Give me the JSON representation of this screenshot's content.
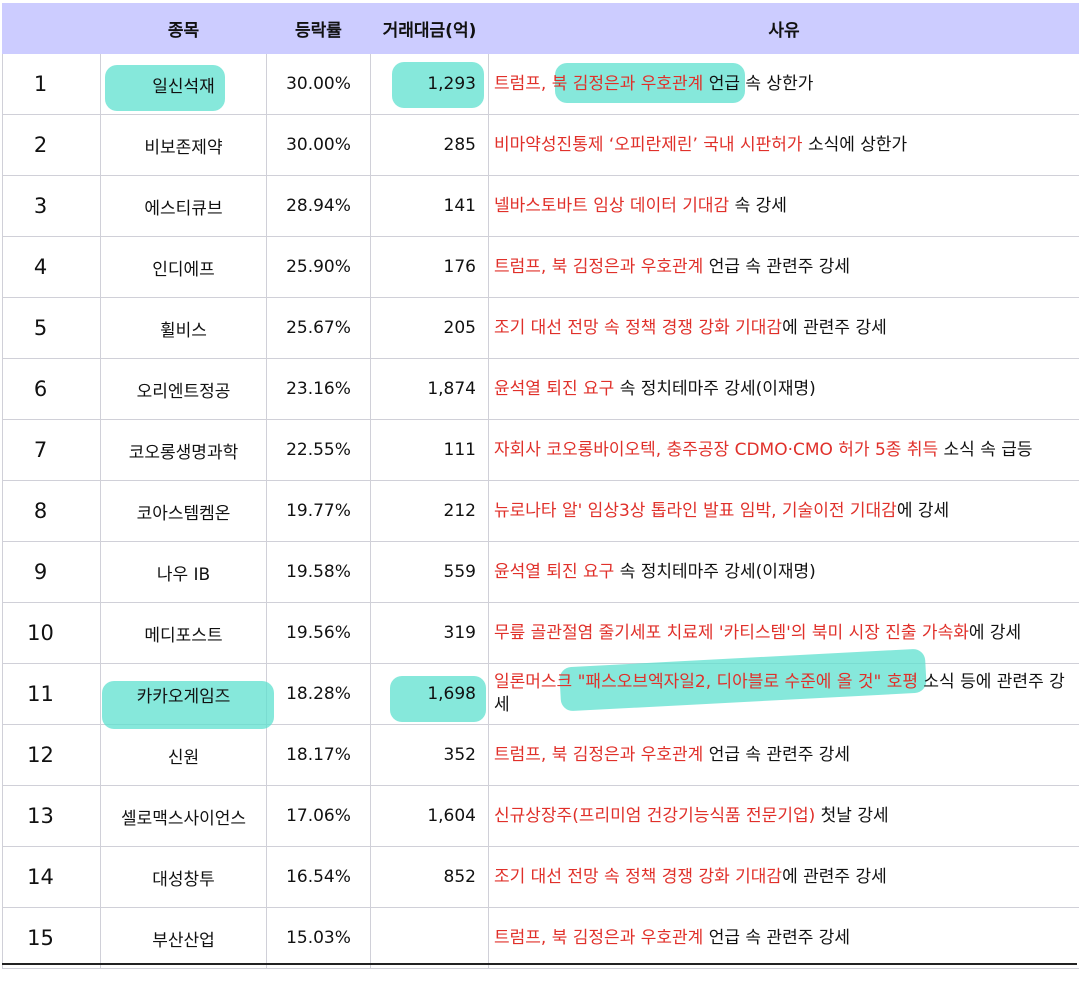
{
  "headers": {
    "rank": "",
    "name": "종목",
    "rate": "등락률",
    "volume": "거래대금(억)",
    "reason": "사유"
  },
  "colors": {
    "header_bg": "#ccccff",
    "highlight": "#5ee0cf",
    "reason_red": "#e0302a"
  },
  "rows": [
    {
      "rank": "1",
      "name": "일신석재",
      "rate": "30.00%",
      "volume": "1,293",
      "reason_red": "트럼프, 북 김정은과 우호관계",
      "reason_black": " 언급 속 상한가"
    },
    {
      "rank": "2",
      "name": "비보존제약",
      "rate": "30.00%",
      "volume": "285",
      "reason_red": "비마약성진통제 ‘오피란제린’ 국내 시판허가",
      "reason_black": " 소식에 상한가"
    },
    {
      "rank": "3",
      "name": "에스티큐브",
      "rate": "28.94%",
      "volume": "141",
      "reason_red": "넬바스토바트 임상 데이터 기대감",
      "reason_black": " 속 강세"
    },
    {
      "rank": "4",
      "name": "인디에프",
      "rate": "25.90%",
      "volume": "176",
      "reason_red": "트럼프, 북 김정은과 우호관계",
      "reason_black": " 언급 속 관련주 강세"
    },
    {
      "rank": "5",
      "name": "휠비스",
      "rate": "25.67%",
      "volume": "205",
      "reason_red": "조기 대선 전망 속 정책 경쟁 강화 기대감",
      "reason_black": "에 관련주 강세"
    },
    {
      "rank": "6",
      "name": "오리엔트정공",
      "rate": "23.16%",
      "volume": "1,874",
      "reason_red": "윤석열 퇴진 요구",
      "reason_black": " 속 정치테마주 강세(이재명)"
    },
    {
      "rank": "7",
      "name": "코오롱생명과학",
      "rate": "22.55%",
      "volume": "111",
      "reason_red": "자회사 코오롱바이오텍, 충주공장 CDMO·CMO 허가 5종 취득",
      "reason_black": " 소식 속 급등"
    },
    {
      "rank": "8",
      "name": "코아스템켐온",
      "rate": "19.77%",
      "volume": "212",
      "reason_red": "뉴로나타 알' 임상3상 톱라인 발표 임박, 기술이전 기대감",
      "reason_black": "에 강세"
    },
    {
      "rank": "9",
      "name": "나우 IB",
      "rate": "19.58%",
      "volume": "559",
      "reason_red": "윤석열 퇴진 요구",
      "reason_black": " 속 정치테마주 강세(이재명)"
    },
    {
      "rank": "10",
      "name": "메디포스트",
      "rate": "19.56%",
      "volume": "319",
      "reason_red": "무릎 골관절염 줄기세포 치료제 '카티스템'의 북미 시장 진출 가속화",
      "reason_black": "에 강세"
    },
    {
      "rank": "11",
      "name": "카카오게임즈",
      "rate": "18.28%",
      "volume": "1,698",
      "reason_red": "일론머스크 \"패스오브엑자일2, 디아블로 수준에 올 것\" 호평",
      "reason_black": " 소식 등에 관련주 강세"
    },
    {
      "rank": "12",
      "name": "신원",
      "rate": "18.17%",
      "volume": "352",
      "reason_red": "트럼프, 북 김정은과 우호관계",
      "reason_black": " 언급 속 관련주 강세"
    },
    {
      "rank": "13",
      "name": "셀로맥스사이언스",
      "rate": "17.06%",
      "volume": "1,604",
      "reason_red": "신규상장주(프리미엄 건강기능식품 전문기업)",
      "reason_black": " 첫날 강세"
    },
    {
      "rank": "14",
      "name": "대성창투",
      "rate": "16.54%",
      "volume": "852",
      "reason_red": "조기 대선 전망 속 정책 경쟁 강화 기대감",
      "reason_black": "에 관련주 강세"
    },
    {
      "rank": "15",
      "name": "부산산업",
      "rate": "15.03%",
      "volume": "",
      "reason_red": "트럼프, 북 김정은과 우호관계",
      "reason_black": " 언급 속 관련주 강세"
    }
  ]
}
